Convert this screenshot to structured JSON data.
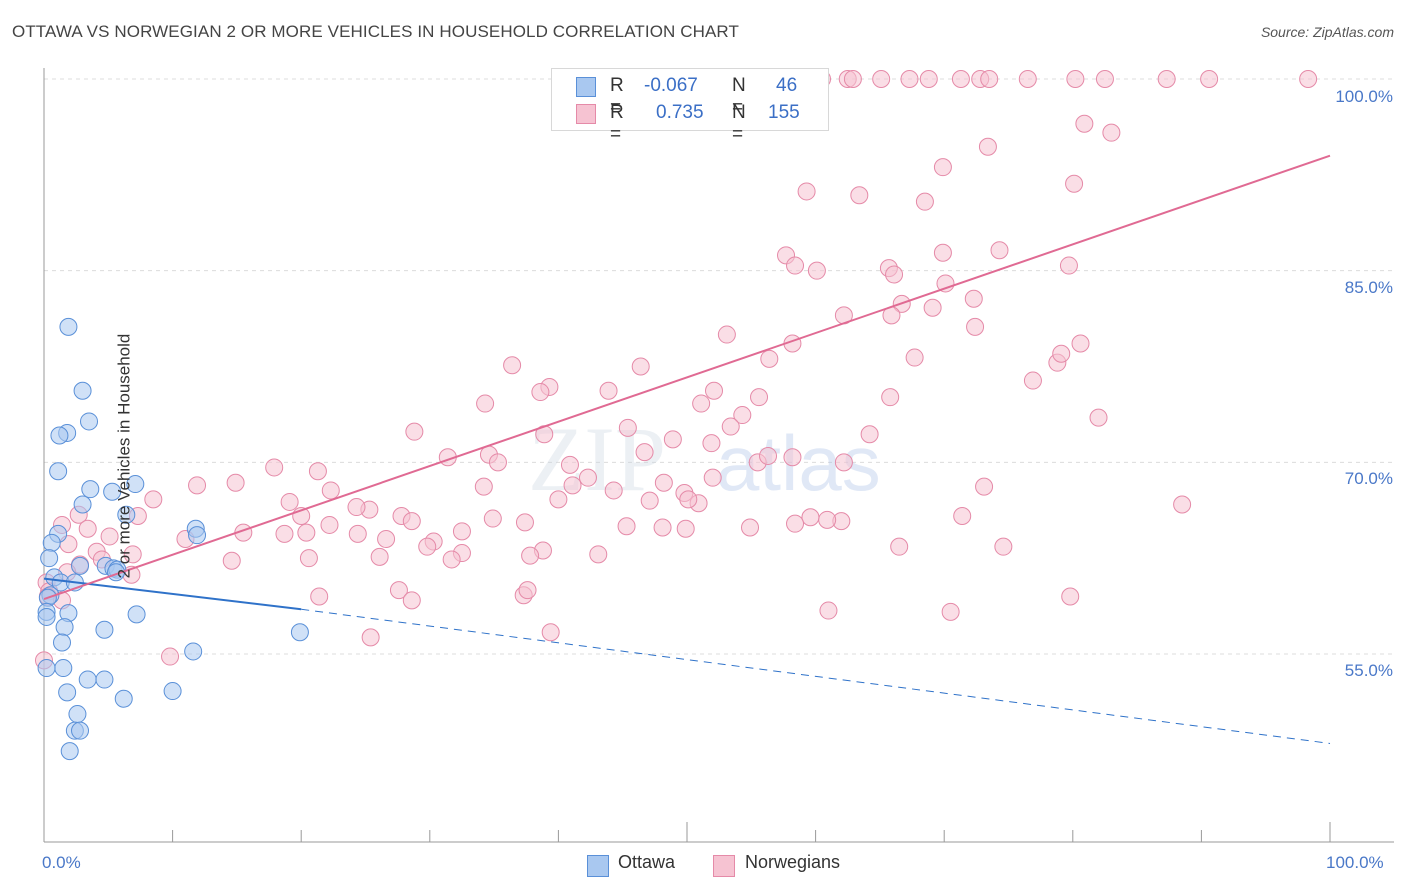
{
  "title": "OTTAWA VS NORWEGIAN 2 OR MORE VEHICLES IN HOUSEHOLD CORRELATION CHART",
  "source": "Source: ZipAtlas.com",
  "watermark": {
    "zip": "ZIP",
    "atlas": "atlas"
  },
  "colors": {
    "ottawa_fill": "#a9c8f0",
    "ottawa_stroke": "#5a90d8",
    "ottawa_line": "#2f72c9",
    "norwegian_fill": "#f6c3d2",
    "norwegian_stroke": "#e58aa8",
    "norwegian_line": "#e06a93",
    "value_blue": "#3b6fc6"
  },
  "legend": {
    "r_label": "R =",
    "n_label": "N =",
    "rows": [
      {
        "r": "-0.067",
        "n": "46"
      },
      {
        "r": "0.735",
        "n": "155"
      }
    ]
  },
  "bottom_legend": [
    "Ottawa",
    "Norwegians"
  ],
  "chart_data": {
    "type": "scatter",
    "title": "OTTAWA VS NORWEGIAN 2 OR MORE VEHICLES IN HOUSEHOLD CORRELATION CHART",
    "xlabel": "",
    "ylabel": "2 or more Vehicles in Household",
    "xlim": [
      0,
      100
    ],
    "ylim": [
      40,
      100
    ],
    "x_ticks_labels": [
      "0.0%",
      "100.0%"
    ],
    "y_ticks": [
      55,
      70,
      85,
      100
    ],
    "y_tick_labels": [
      "55.0%",
      "70.0%",
      "85.0%",
      "100.0%"
    ],
    "grid": true,
    "legend_position": "top-center",
    "series": [
      {
        "name": "Ottawa",
        "r": -0.067,
        "n": 46,
        "trend": {
          "x": [
            0,
            20
          ],
          "y": [
            60.9,
            58.5
          ],
          "dashed_extension_to": [
            100,
            48.0
          ]
        },
        "points": [
          [
            1.9,
            80.6
          ],
          [
            3.0,
            75.6
          ],
          [
            3.5,
            73.2
          ],
          [
            1.8,
            72.3
          ],
          [
            1.2,
            72.1
          ],
          [
            1.1,
            69.3
          ],
          [
            7.1,
            68.3
          ],
          [
            3.6,
            67.9
          ],
          [
            5.3,
            67.7
          ],
          [
            3.0,
            66.7
          ],
          [
            6.4,
            65.9
          ],
          [
            1.1,
            64.4
          ],
          [
            11.8,
            64.8
          ],
          [
            11.9,
            64.3
          ],
          [
            0.6,
            63.7
          ],
          [
            0.4,
            62.5
          ],
          [
            2.8,
            61.9
          ],
          [
            4.8,
            61.9
          ],
          [
            5.4,
            61.7
          ],
          [
            5.7,
            61.6
          ],
          [
            5.6,
            61.4
          ],
          [
            0.8,
            61.0
          ],
          [
            1.3,
            60.6
          ],
          [
            2.4,
            60.6
          ],
          [
            0.5,
            59.6
          ],
          [
            0.3,
            59.4
          ],
          [
            0.2,
            58.3
          ],
          [
            7.2,
            58.1
          ],
          [
            1.9,
            58.2
          ],
          [
            0.2,
            57.9
          ],
          [
            1.6,
            57.1
          ],
          [
            4.7,
            56.9
          ],
          [
            19.9,
            56.7
          ],
          [
            1.4,
            55.9
          ],
          [
            11.6,
            55.2
          ],
          [
            1.5,
            53.9
          ],
          [
            0.2,
            53.9
          ],
          [
            3.4,
            53.0
          ],
          [
            4.7,
            53.0
          ],
          [
            1.8,
            52.0
          ],
          [
            10.0,
            52.1
          ],
          [
            6.2,
            51.5
          ],
          [
            2.6,
            50.3
          ],
          [
            2.4,
            49.0
          ],
          [
            2.8,
            49.0
          ],
          [
            2.0,
            47.4
          ]
        ]
      },
      {
        "name": "Norwegians",
        "r": 0.735,
        "n": 155,
        "trend": {
          "x": [
            0,
            100
          ],
          "y": [
            59.3,
            94.0
          ]
        },
        "points": [
          [
            60.5,
            100
          ],
          [
            62.5,
            100
          ],
          [
            62.9,
            100
          ],
          [
            65.1,
            100
          ],
          [
            67.3,
            100
          ],
          [
            68.8,
            100
          ],
          [
            71.3,
            100
          ],
          [
            72.8,
            100
          ],
          [
            73.5,
            100
          ],
          [
            76.5,
            100
          ],
          [
            80.2,
            100
          ],
          [
            82.5,
            100
          ],
          [
            87.3,
            100
          ],
          [
            90.6,
            100
          ],
          [
            98.3,
            100
          ],
          [
            80.9,
            96.5
          ],
          [
            83.0,
            95.8
          ],
          [
            69.9,
            93.1
          ],
          [
            73.4,
            94.7
          ],
          [
            80.1,
            91.8
          ],
          [
            63.4,
            90.9
          ],
          [
            59.3,
            91.2
          ],
          [
            68.5,
            90.4
          ],
          [
            57.7,
            86.2
          ],
          [
            58.4,
            85.4
          ],
          [
            74.3,
            86.6
          ],
          [
            69.9,
            86.4
          ],
          [
            60.1,
            85.0
          ],
          [
            65.7,
            85.2
          ],
          [
            66.1,
            84.7
          ],
          [
            70.1,
            84.0
          ],
          [
            79.7,
            85.4
          ],
          [
            72.3,
            82.8
          ],
          [
            66.7,
            82.4
          ],
          [
            69.1,
            82.1
          ],
          [
            62.2,
            81.5
          ],
          [
            65.9,
            81.5
          ],
          [
            72.4,
            80.6
          ],
          [
            53.1,
            80.0
          ],
          [
            58.2,
            79.3
          ],
          [
            56.4,
            78.1
          ],
          [
            67.7,
            78.2
          ],
          [
            76.9,
            76.4
          ],
          [
            36.4,
            77.6
          ],
          [
            46.4,
            77.5
          ],
          [
            39.3,
            75.9
          ],
          [
            43.9,
            75.6
          ],
          [
            52.1,
            75.6
          ],
          [
            38.6,
            75.5
          ],
          [
            55.6,
            75.1
          ],
          [
            65.8,
            75.1
          ],
          [
            34.3,
            74.6
          ],
          [
            51.1,
            74.6
          ],
          [
            54.3,
            73.7
          ],
          [
            53.4,
            72.8
          ],
          [
            64.2,
            72.2
          ],
          [
            45.4,
            72.7
          ],
          [
            28.8,
            72.4
          ],
          [
            38.9,
            72.2
          ],
          [
            48.9,
            71.8
          ],
          [
            51.9,
            71.5
          ],
          [
            58.2,
            70.4
          ],
          [
            55.5,
            70.0
          ],
          [
            56.3,
            70.5
          ],
          [
            62.2,
            70.0
          ],
          [
            40.9,
            69.8
          ],
          [
            34.6,
            70.6
          ],
          [
            46.7,
            70.8
          ],
          [
            31.4,
            70.4
          ],
          [
            35.3,
            70.0
          ],
          [
            17.9,
            69.6
          ],
          [
            14.9,
            68.4
          ],
          [
            34.2,
            68.1
          ],
          [
            21.3,
            69.3
          ],
          [
            48.2,
            68.4
          ],
          [
            42.3,
            68.8
          ],
          [
            44.3,
            67.8
          ],
          [
            11.9,
            68.2
          ],
          [
            41.1,
            68.2
          ],
          [
            50.9,
            66.8
          ],
          [
            49.8,
            67.6
          ],
          [
            22.3,
            67.8
          ],
          [
            40.0,
            67.1
          ],
          [
            47.1,
            67.0
          ],
          [
            25.3,
            66.3
          ],
          [
            19.1,
            66.9
          ],
          [
            24.3,
            66.5
          ],
          [
            27.8,
            65.8
          ],
          [
            34.9,
            65.6
          ],
          [
            28.6,
            65.4
          ],
          [
            37.4,
            65.3
          ],
          [
            45.3,
            65.0
          ],
          [
            22.2,
            65.1
          ],
          [
            49.9,
            64.8
          ],
          [
            32.5,
            64.6
          ],
          [
            24.4,
            64.4
          ],
          [
            18.7,
            64.4
          ],
          [
            20.4,
            64.5
          ],
          [
            15.5,
            64.5
          ],
          [
            11.0,
            64.0
          ],
          [
            26.6,
            64.0
          ],
          [
            30.3,
            63.8
          ],
          [
            29.8,
            63.4
          ],
          [
            38.8,
            63.1
          ],
          [
            32.5,
            62.9
          ],
          [
            43.1,
            62.8
          ],
          [
            26.1,
            62.6
          ],
          [
            37.8,
            62.7
          ],
          [
            20.6,
            62.5
          ],
          [
            31.7,
            62.4
          ],
          [
            14.6,
            62.3
          ],
          [
            7.3,
            65.8
          ],
          [
            2.7,
            65.9
          ],
          [
            8.5,
            67.1
          ],
          [
            1.4,
            65.1
          ],
          [
            3.4,
            64.8
          ],
          [
            5.1,
            64.2
          ],
          [
            1.9,
            63.6
          ],
          [
            4.1,
            63.0
          ],
          [
            6.9,
            62.8
          ],
          [
            2.8,
            62.0
          ],
          [
            4.5,
            62.4
          ],
          [
            1.8,
            61.4
          ],
          [
            6.8,
            61.2
          ],
          [
            0.2,
            60.6
          ],
          [
            0.4,
            59.9
          ],
          [
            0.3,
            59.5
          ],
          [
            1.4,
            59.2
          ],
          [
            21.4,
            59.5
          ],
          [
            27.6,
            60.0
          ],
          [
            37.3,
            59.6
          ],
          [
            37.6,
            60.0
          ],
          [
            50.1,
            67.1
          ],
          [
            52.0,
            68.8
          ],
          [
            39.4,
            56.7
          ],
          [
            25.4,
            56.3
          ],
          [
            9.8,
            54.8
          ],
          [
            59.6,
            65.7
          ],
          [
            58.4,
            65.2
          ],
          [
            62.0,
            65.4
          ],
          [
            71.4,
            65.8
          ],
          [
            73.1,
            68.1
          ],
          [
            74.6,
            63.4
          ],
          [
            66.5,
            63.4
          ],
          [
            88.5,
            66.7
          ],
          [
            78.8,
            77.8
          ],
          [
            79.1,
            78.5
          ],
          [
            80.6,
            79.3
          ],
          [
            82.0,
            73.5
          ],
          [
            60.9,
            65.5
          ],
          [
            28.6,
            59.2
          ],
          [
            61.0,
            58.4
          ],
          [
            70.5,
            58.3
          ],
          [
            79.8,
            59.5
          ],
          [
            48.1,
            64.9
          ],
          [
            20.0,
            65.8
          ],
          [
            54.9,
            64.9
          ],
          [
            0.0,
            54.5
          ]
        ]
      }
    ]
  }
}
